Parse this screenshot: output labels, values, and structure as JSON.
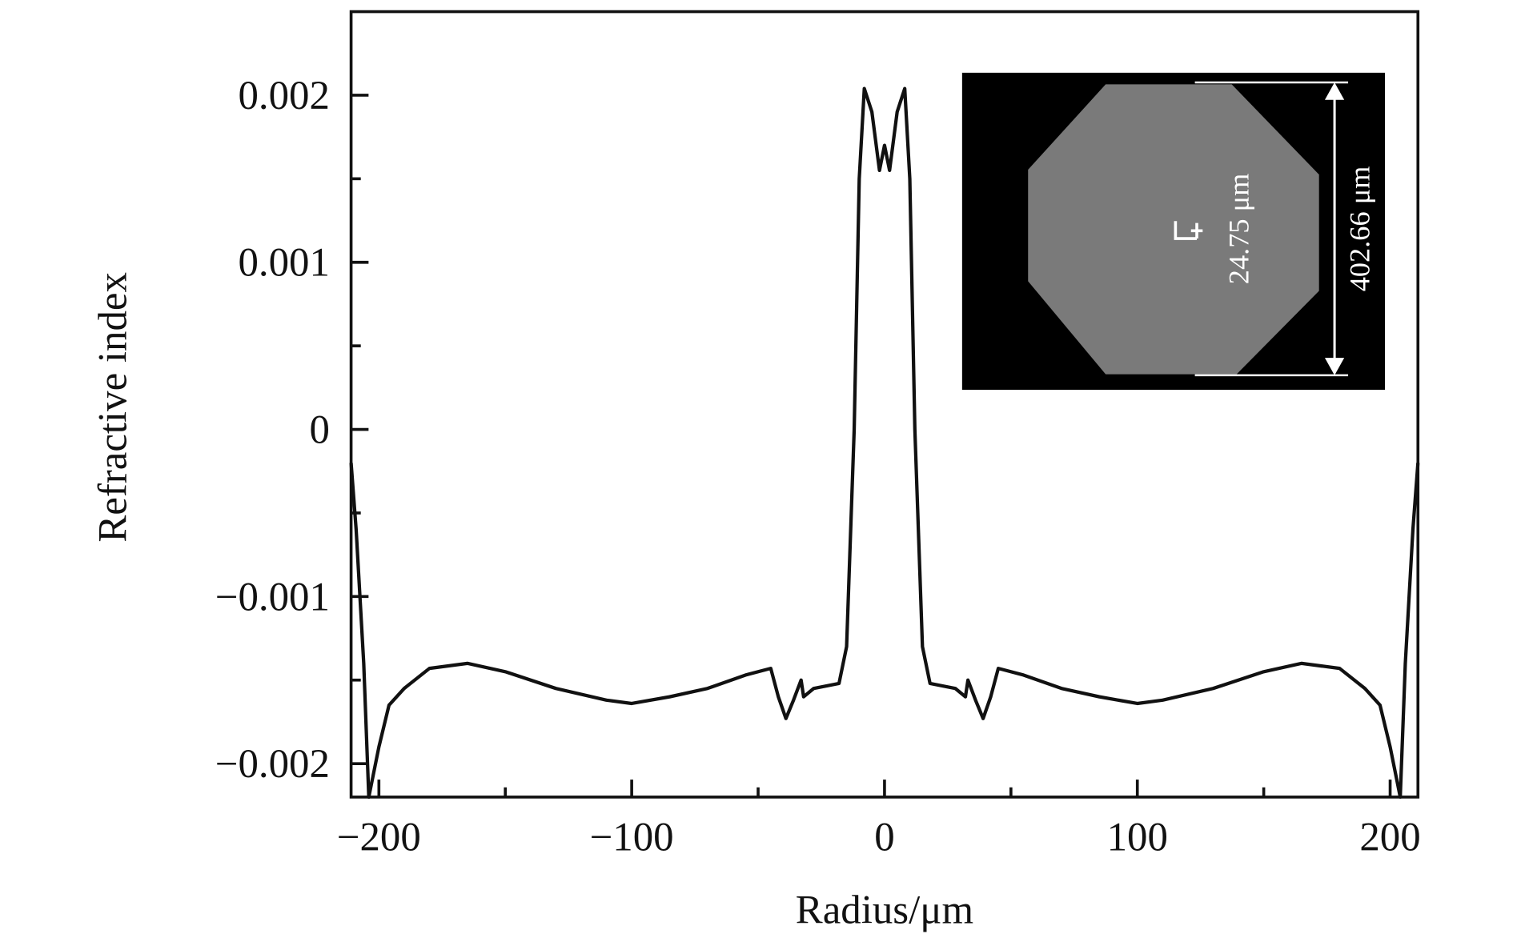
{
  "chart_data": {
    "type": "line",
    "x_label": "Radius/μm",
    "y_label": "Refractive index",
    "xlim": [
      -211,
      211
    ],
    "ylim": [
      -0.0022,
      0.0025
    ],
    "xticks": [
      {
        "value": -200,
        "label": "−200"
      },
      {
        "value": -100,
        "label": "−100"
      },
      0,
      100,
      200
    ],
    "yticks": [
      {
        "value": -0.002,
        "label": "−0.002"
      },
      {
        "value": -0.001,
        "label": "−0.001"
      },
      0,
      0.001,
      0.002
    ],
    "xminorticks": [
      -150,
      -50,
      50,
      150
    ],
    "yminorticks": [
      -0.0015,
      -0.0005,
      0.0005,
      0.0015
    ],
    "inset_labels": [
      "24.75 μm",
      "402.66 μm"
    ],
    "series": [
      {
        "color": "#111111",
        "x": [
          -211,
          -209,
          -206,
          -204,
          -200,
          -196,
          -190,
          -180,
          -165,
          -150,
          -130,
          -110,
          -100,
          -85,
          -70,
          -55,
          -45,
          -42,
          -39,
          -36,
          -33,
          -32,
          -28,
          -18,
          -15,
          -12,
          -10,
          -8,
          -5,
          -2,
          0,
          2,
          5,
          8,
          10,
          12,
          15,
          18,
          28,
          32,
          33,
          36,
          39,
          42,
          45,
          55,
          70,
          85,
          100,
          110,
          130,
          150,
          165,
          180,
          190,
          196,
          200,
          204,
          206,
          209,
          211
        ],
        "values": [
          -0.0002,
          -0.0006,
          -0.0014,
          -0.0022,
          -0.0019,
          -0.00165,
          -0.00155,
          -0.00143,
          -0.0014,
          -0.00145,
          -0.00155,
          -0.00162,
          -0.00164,
          -0.0016,
          -0.00155,
          -0.00147,
          -0.00143,
          -0.0016,
          -0.00173,
          -0.00162,
          -0.0015,
          -0.0016,
          -0.00155,
          -0.00152,
          -0.0013,
          0.0,
          0.0015,
          0.00204,
          0.0019,
          0.00155,
          0.0017,
          0.00155,
          0.0019,
          0.00204,
          0.0015,
          0.0,
          -0.0013,
          -0.00152,
          -0.00155,
          -0.0016,
          -0.0015,
          -0.00162,
          -0.00173,
          -0.0016,
          -0.00143,
          -0.00147,
          -0.00155,
          -0.0016,
          -0.00164,
          -0.00162,
          -0.00155,
          -0.00145,
          -0.0014,
          -0.00143,
          -0.00155,
          -0.00165,
          -0.0019,
          -0.0022,
          -0.0014,
          -0.0006,
          -0.0002
        ]
      }
    ]
  }
}
